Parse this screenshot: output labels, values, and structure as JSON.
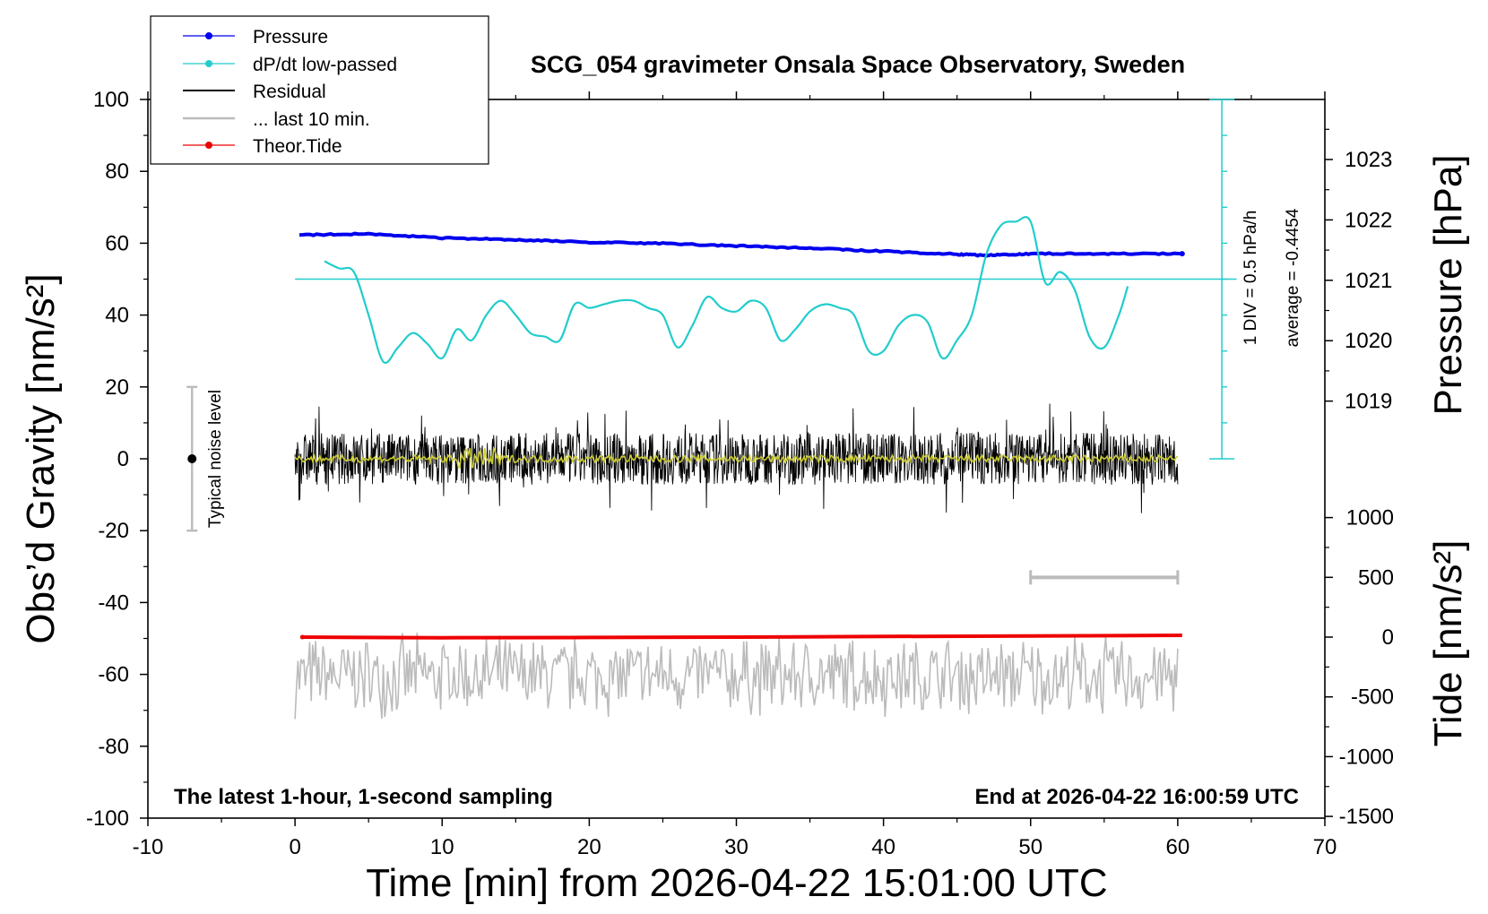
{
  "chart_data": {
    "type": "line",
    "title": "SCG_054 gravimeter Onsala Space Observatory, Sweden",
    "xlabel": "Time [min] from 2026-04-22 15:01:00 UTC",
    "ylabel": "Obs’d Gravity [nm/s²]",
    "y2label": "Pressure [hPa]",
    "y3label": "Tide [nm/s²]",
    "xlim": [
      -10,
      70
    ],
    "ylim": [
      -100,
      100
    ],
    "y2lim": [
      1018,
      1023.8
    ],
    "y3lim": [
      -1500,
      1500
    ],
    "grid": false,
    "legend_position": "top-left",
    "x_ticks": [
      "-10",
      "0",
      "10",
      "20",
      "30",
      "40",
      "50",
      "60",
      "70"
    ],
    "y_ticks": [
      "100",
      "80",
      "60",
      "40",
      "20",
      "0",
      "-20",
      "-40",
      "-60",
      "-80",
      "-100"
    ],
    "pressure_ticks": [
      "1023",
      "1022",
      "1021",
      "1020",
      "1019"
    ],
    "tide_ticks": [
      "1000",
      "500",
      "0",
      "-500",
      "-1000",
      "-1500"
    ],
    "legend": [
      {
        "label": "Pressure",
        "color": "#0000ee",
        "marker": true
      },
      {
        "label": "dP/dt low-passed",
        "color": "#22cccc",
        "marker": true
      },
      {
        "label": "Residual",
        "color": "#000000",
        "marker": false
      },
      {
        "label": "... last 10 min.",
        "color": "#bbbbbb",
        "marker": false
      },
      {
        "label": "Theor.Tide",
        "color": "#ee0000",
        "marker": true
      }
    ],
    "series": [
      {
        "name": "Pressure",
        "axis": "pressure",
        "color": "#0000ee",
        "x": [
          0.3,
          5,
          10,
          15,
          20,
          25,
          30,
          35,
          40,
          45,
          47,
          50,
          55,
          60.3
        ],
        "y": [
          1021.75,
          1021.77,
          1021.7,
          1021.67,
          1021.63,
          1021.61,
          1021.57,
          1021.53,
          1021.48,
          1021.43,
          1021.41,
          1021.44,
          1021.44,
          1021.44
        ]
      },
      {
        "name": "dP/dt low-passed",
        "axis": "gravity",
        "color": "#22cccc",
        "x": [
          2,
          3,
          4,
          5,
          6,
          7,
          8,
          9,
          10,
          11,
          12,
          13,
          14,
          15,
          16,
          17,
          18,
          19,
          20,
          21,
          22,
          23,
          24,
          25,
          26,
          27,
          28,
          29,
          30,
          31,
          32,
          33,
          34,
          35,
          36,
          37,
          38,
          39,
          40,
          41,
          42,
          43,
          44,
          45,
          46,
          47,
          48,
          49,
          50,
          51,
          52,
          53,
          54,
          55,
          56,
          56.6
        ],
        "y": [
          55,
          53,
          52,
          40,
          27,
          31,
          35,
          32,
          28,
          36,
          33,
          40,
          44,
          40,
          35,
          34,
          33,
          43,
          42,
          43,
          44,
          44,
          42,
          40,
          31,
          37,
          45,
          42,
          41,
          44,
          42,
          33,
          36,
          41,
          43,
          42,
          40,
          30,
          30,
          37,
          40,
          38,
          28,
          33,
          40,
          57,
          65,
          66,
          66,
          49,
          52,
          47,
          34,
          31,
          40,
          48
        ]
      },
      {
        "name": "Residual",
        "axis": "gravity",
        "color": "#000000",
        "x": [
          0,
          60
        ],
        "y": [
          0,
          0
        ],
        "envelope": [
          -12,
          12
        ]
      },
      {
        "name": "Residual smoothed",
        "axis": "gravity",
        "color": "#cccc33",
        "x": [
          0,
          60
        ],
        "y": [
          0,
          0
        ]
      },
      {
        "name": "Theor.Tide",
        "axis": "tide",
        "color": "#ee0000",
        "x": [
          0.5,
          10,
          20,
          30,
          40,
          50,
          60.3
        ],
        "y": [
          0,
          -5,
          -3,
          0,
          5,
          10,
          15
        ]
      },
      {
        "name": "... last 10 min.",
        "axis": "gravity",
        "color": "#bbbbbb",
        "x": [
          0,
          60
        ],
        "y": [
          -60,
          -60
        ],
        "envelope": [
          -73,
          -48
        ]
      }
    ],
    "dpdt_baseline": 50,
    "dpdt_scale_label": "1 DIV = 0.5 hPa/h",
    "dpdt_average_label": "average = -0.4454",
    "noise_bar": {
      "x": -7,
      "low": -20,
      "high": 20,
      "label": "Typical noise level"
    },
    "last10_bar": {
      "x_start": 50,
      "x_end": 60,
      "y": -33
    },
    "annotation_left": "The latest 1-hour, 1-second sampling",
    "annotation_right": "End at 2026-04-22 16:00:59 UTC"
  }
}
